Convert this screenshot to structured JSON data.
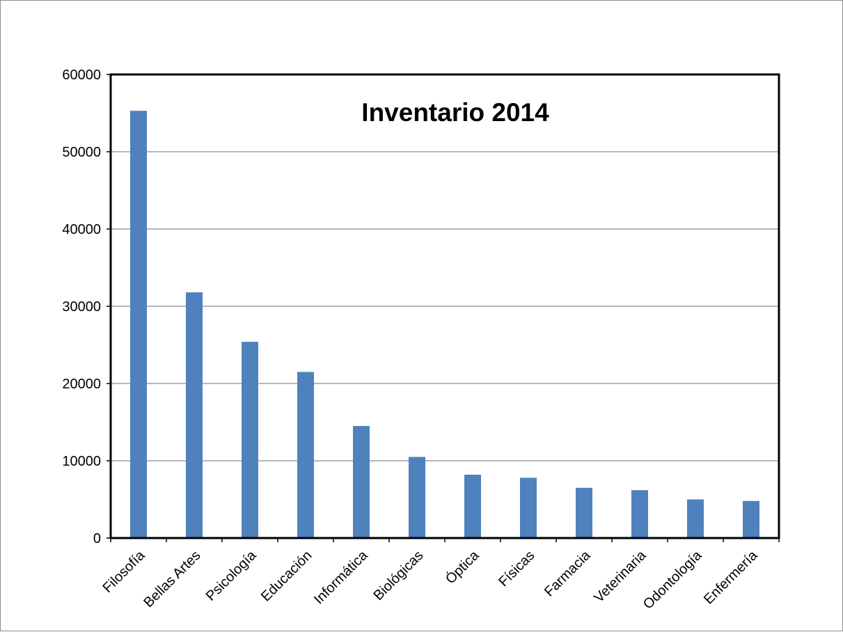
{
  "chart_data": {
    "type": "bar",
    "title": "Inventario 2014",
    "xlabel": "",
    "ylabel": "",
    "ylim": [
      0,
      60000
    ],
    "yticks": [
      "0",
      "10000",
      "20000",
      "30000",
      "40000",
      "50000",
      "60000"
    ],
    "grid": true,
    "legend": "none",
    "categories": [
      "Filosofía",
      "Bellas Artes",
      "Psicología",
      "Educación",
      "Informática",
      "Biológicas",
      "Óptica",
      "Físicas",
      "Farmacia",
      "Veterinaria",
      "Odontología",
      "Enfermería"
    ],
    "values": [
      55300,
      31800,
      25400,
      21500,
      14500,
      10500,
      8200,
      7800,
      6500,
      6200,
      5000,
      4800
    ],
    "bar_color": "#4f81bd"
  }
}
